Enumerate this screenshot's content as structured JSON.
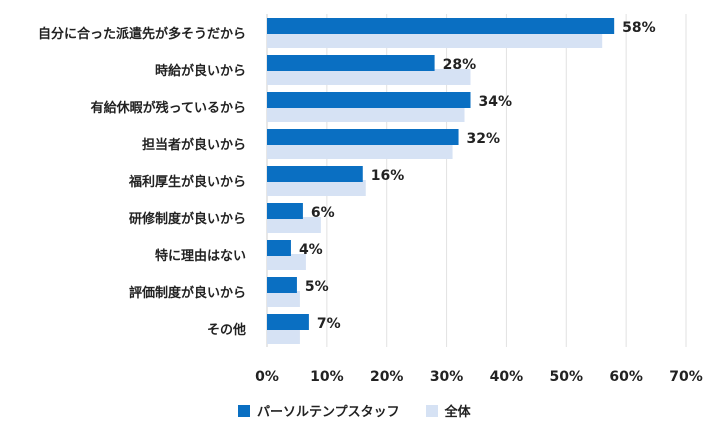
{
  "chart_data": {
    "type": "bar",
    "orientation": "horizontal",
    "categories": [
      "自分に合った派遣先が多そうだから",
      "時給が良いから",
      "有給休暇が残っているから",
      "担当者が良いから",
      "福利厚生が良いから",
      "研修制度が良いから",
      "特に理由はない",
      "評価制度が良いから",
      "その他"
    ],
    "series": [
      {
        "name": "パーソルテンプスタッフ",
        "color": "#0a6fc2",
        "values": [
          58,
          28,
          34,
          32,
          16,
          6,
          4,
          5,
          7
        ],
        "value_labels": [
          "58%",
          "28%",
          "34%",
          "32%",
          "16%",
          "6%",
          "4%",
          "5%",
          "7%"
        ]
      },
      {
        "name": "全体",
        "color": "#d6e2f4",
        "values": [
          56,
          34,
          33,
          31,
          16.5,
          9,
          6.5,
          5.5,
          5.5
        ]
      }
    ],
    "xlim": [
      0,
      70
    ],
    "xticks": [
      "0%",
      "10%",
      "20%",
      "30%",
      "40%",
      "50%",
      "60%",
      "70%"
    ],
    "grid": true,
    "legend": "bottom-center"
  }
}
